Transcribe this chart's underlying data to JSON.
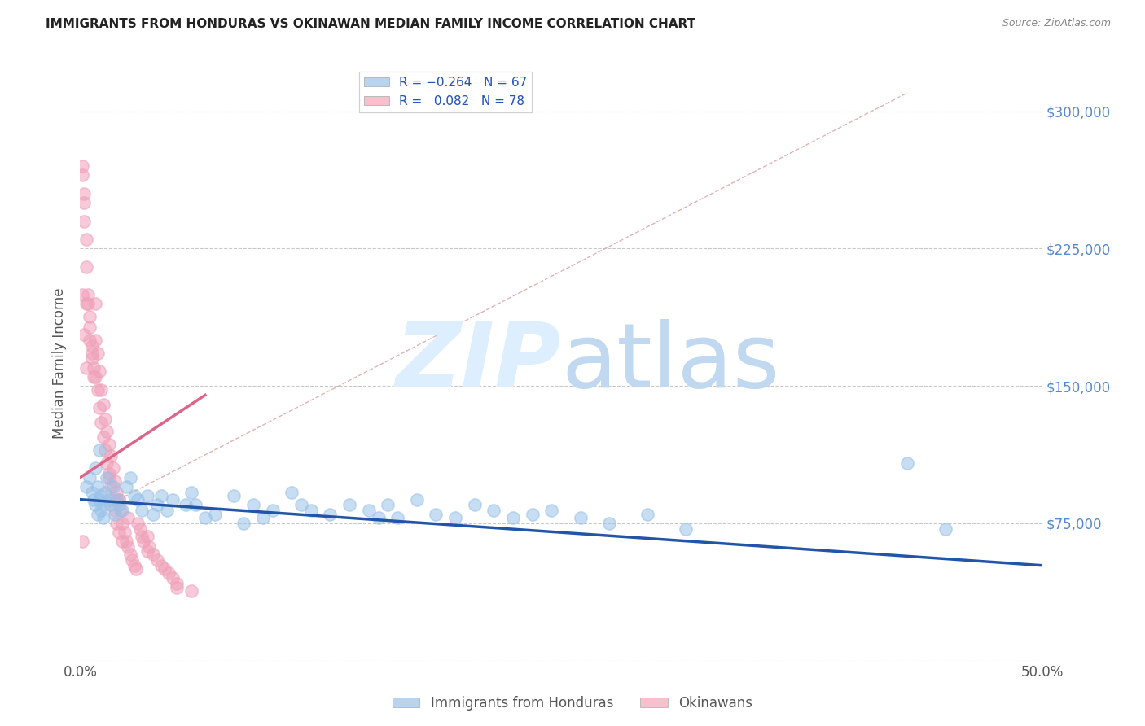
{
  "title": "IMMIGRANTS FROM HONDURAS VS OKINAWAN MEDIAN FAMILY INCOME CORRELATION CHART",
  "source_text": "Source: ZipAtlas.com",
  "ylabel": "Median Family Income",
  "xlim": [
    0.0,
    0.5
  ],
  "ylim": [
    0,
    325000
  ],
  "yticks": [
    0,
    75000,
    150000,
    225000,
    300000
  ],
  "xticks": [
    0.0,
    0.1,
    0.2,
    0.3,
    0.4,
    0.5
  ],
  "xtick_labels": [
    "0.0%",
    "",
    "",
    "",
    "",
    "50.0%"
  ],
  "right_tick_color": "#5588cc",
  "grid_color": "#bbbbbb",
  "blue_scatter_color": "#99c2e8",
  "pink_scatter_color": "#f0a0b8",
  "blue_line_color": "#2255aa",
  "pink_line_color": "#dd6688",
  "ref_line_color": "#ddaaaa",
  "watermark_color": "#ddeeff",
  "blue_line_x0": 0.0,
  "blue_line_y0": 88000,
  "blue_line_x1": 0.5,
  "blue_line_y1": 52000,
  "pink_line_x0": 0.0,
  "pink_line_y0": 100000,
  "pink_line_x1": 0.065,
  "pink_line_y1": 145000,
  "ref_line_x0": 0.02,
  "ref_line_y0": 88000,
  "ref_line_x1": 0.43,
  "ref_line_y1": 310000,
  "blue_points_x": [
    0.003,
    0.005,
    0.006,
    0.007,
    0.008,
    0.008,
    0.009,
    0.009,
    0.01,
    0.01,
    0.011,
    0.011,
    0.012,
    0.012,
    0.013,
    0.014,
    0.015,
    0.016,
    0.017,
    0.018,
    0.019,
    0.02,
    0.022,
    0.024,
    0.026,
    0.028,
    0.03,
    0.032,
    0.035,
    0.038,
    0.04,
    0.042,
    0.045,
    0.048,
    0.055,
    0.058,
    0.06,
    0.065,
    0.07,
    0.08,
    0.085,
    0.09,
    0.095,
    0.1,
    0.11,
    0.115,
    0.12,
    0.13,
    0.14,
    0.15,
    0.155,
    0.16,
    0.165,
    0.175,
    0.185,
    0.195,
    0.205,
    0.215,
    0.225,
    0.235,
    0.245,
    0.26,
    0.275,
    0.295,
    0.315,
    0.43,
    0.45
  ],
  "blue_points_y": [
    95000,
    100000,
    92000,
    88000,
    85000,
    105000,
    80000,
    95000,
    88000,
    115000,
    82000,
    90000,
    78000,
    85000,
    92000,
    100000,
    88000,
    85000,
    95000,
    80000,
    88000,
    85000,
    82000,
    95000,
    100000,
    90000,
    88000,
    82000,
    90000,
    80000,
    85000,
    90000,
    82000,
    88000,
    85000,
    92000,
    85000,
    78000,
    80000,
    90000,
    75000,
    85000,
    78000,
    82000,
    92000,
    85000,
    82000,
    80000,
    85000,
    82000,
    78000,
    85000,
    78000,
    88000,
    80000,
    78000,
    85000,
    82000,
    78000,
    80000,
    82000,
    78000,
    75000,
    80000,
    72000,
    108000,
    72000
  ],
  "pink_points_x": [
    0.001,
    0.001,
    0.002,
    0.002,
    0.003,
    0.003,
    0.004,
    0.005,
    0.005,
    0.006,
    0.006,
    0.007,
    0.007,
    0.008,
    0.008,
    0.008,
    0.009,
    0.009,
    0.01,
    0.01,
    0.011,
    0.011,
    0.012,
    0.012,
    0.013,
    0.013,
    0.014,
    0.014,
    0.015,
    0.015,
    0.016,
    0.016,
    0.017,
    0.017,
    0.018,
    0.018,
    0.019,
    0.019,
    0.02,
    0.02,
    0.021,
    0.022,
    0.022,
    0.023,
    0.024,
    0.025,
    0.026,
    0.027,
    0.028,
    0.029,
    0.03,
    0.031,
    0.032,
    0.033,
    0.035,
    0.036,
    0.038,
    0.04,
    0.042,
    0.044,
    0.046,
    0.048,
    0.05,
    0.002,
    0.003,
    0.004,
    0.005,
    0.006,
    0.05,
    0.058,
    0.001,
    0.002,
    0.003,
    0.015,
    0.02,
    0.025,
    0.035,
    0.001
  ],
  "pink_points_y": [
    270000,
    265000,
    250000,
    240000,
    230000,
    195000,
    195000,
    188000,
    175000,
    172000,
    165000,
    160000,
    155000,
    195000,
    175000,
    155000,
    168000,
    148000,
    158000,
    138000,
    148000,
    130000,
    140000,
    122000,
    132000,
    115000,
    125000,
    108000,
    118000,
    100000,
    112000,
    95000,
    105000,
    88000,
    98000,
    82000,
    92000,
    75000,
    88000,
    70000,
    82000,
    75000,
    65000,
    70000,
    65000,
    62000,
    58000,
    55000,
    52000,
    50000,
    75000,
    72000,
    68000,
    65000,
    68000,
    62000,
    58000,
    55000,
    52000,
    50000,
    48000,
    45000,
    42000,
    255000,
    215000,
    200000,
    182000,
    168000,
    40000,
    38000,
    200000,
    178000,
    160000,
    102000,
    88000,
    78000,
    60000,
    65000
  ]
}
